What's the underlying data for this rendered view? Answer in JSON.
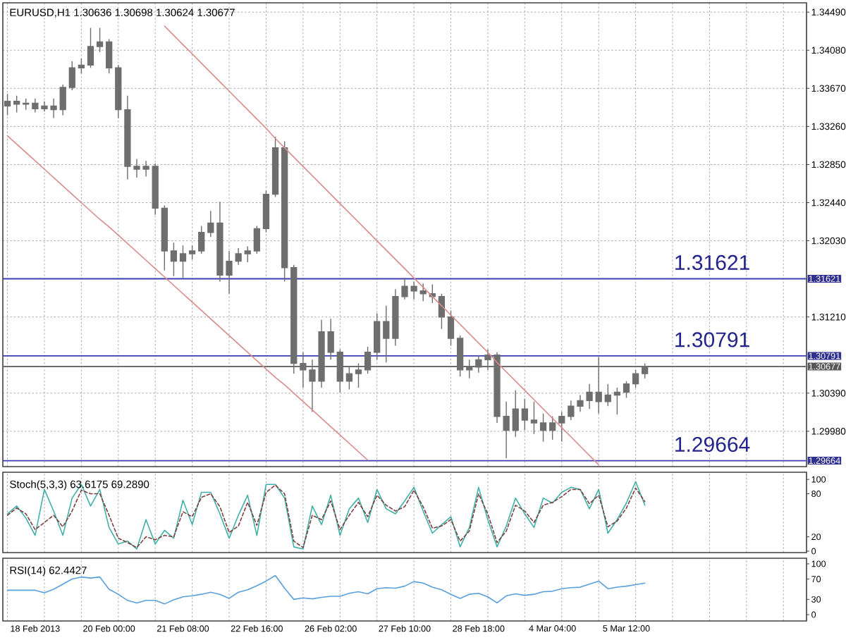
{
  "chart_data": [
    {
      "type": "candlestick",
      "title": "EURUSD,H1 1.30636 1.30698 1.30624 1.30677",
      "color": "#6e6e6e",
      "categories": [
        null,
        null,
        null,
        null,
        null,
        null,
        null,
        null,
        null,
        null,
        null,
        null,
        null,
        null,
        null,
        null,
        null,
        null,
        null,
        null,
        null,
        null,
        null,
        null,
        null,
        null,
        null,
        null,
        null,
        null,
        null,
        null,
        null,
        null,
        null,
        null,
        null,
        null,
        null,
        null,
        null,
        null,
        null,
        null,
        null,
        null,
        null,
        null,
        null,
        null,
        null,
        null,
        null,
        null,
        null,
        null,
        null,
        null,
        null,
        null,
        null,
        null,
        null,
        null,
        null,
        null,
        null,
        null,
        null,
        null,
        null,
        null,
        null,
        null,
        null,
        null,
        null,
        null,
        null,
        null,
        null,
        null,
        null,
        null,
        null,
        null,
        null
      ],
      "ohlc": [
        [
          1.3348,
          1.3361,
          1.3338,
          1.3353
        ],
        [
          1.3353,
          1.3359,
          1.3341,
          1.335
        ],
        [
          1.335,
          1.3356,
          1.3344,
          1.3351
        ],
        [
          1.3351,
          1.3356,
          1.3341,
          1.3345
        ],
        [
          1.3345,
          1.3353,
          1.3342,
          1.3348
        ],
        [
          1.3348,
          1.3356,
          1.3335,
          1.3344
        ],
        [
          1.3344,
          1.3371,
          1.3338,
          1.3368
        ],
        [
          1.3368,
          1.3396,
          1.3365,
          1.3389
        ],
        [
          1.3389,
          1.3399,
          1.3383,
          1.3392
        ],
        [
          1.3392,
          1.3432,
          1.3389,
          1.3412
        ],
        [
          1.3412,
          1.3432,
          1.3406,
          1.3417
        ],
        [
          1.3417,
          1.342,
          1.3383,
          1.3389
        ],
        [
          1.3389,
          1.3392,
          1.3335,
          1.3344
        ],
        [
          1.3344,
          1.3359,
          1.3269,
          1.3283
        ],
        [
          1.3283,
          1.3291,
          1.3271,
          1.328
        ],
        [
          1.328,
          1.3289,
          1.3272,
          1.3283
        ],
        [
          1.3283,
          1.3286,
          1.3231,
          1.3238
        ],
        [
          1.3238,
          1.3241,
          1.3171,
          1.3192
        ],
        [
          1.3192,
          1.3201,
          1.3165,
          1.3181
        ],
        [
          1.3181,
          1.3198,
          1.3163,
          1.3189
        ],
        [
          1.3189,
          1.3198,
          1.3183,
          1.3192
        ],
        [
          1.3192,
          1.3219,
          1.3189,
          1.3212
        ],
        [
          1.3212,
          1.3235,
          1.3207,
          1.3222
        ],
        [
          1.3222,
          1.3245,
          1.3159,
          1.3166
        ],
        [
          1.3166,
          1.3192,
          1.3146,
          1.3181
        ],
        [
          1.3181,
          1.3195,
          1.3177,
          1.3189
        ],
        [
          1.3189,
          1.3197,
          1.318,
          1.3192
        ],
        [
          1.3192,
          1.3219,
          1.3189,
          1.3216
        ],
        [
          1.3216,
          1.3257,
          1.3212,
          1.3253
        ],
        [
          1.3253,
          1.3315,
          1.325,
          1.3303
        ],
        [
          1.3303,
          1.331,
          1.3159,
          1.3174
        ],
        [
          1.3174,
          1.3177,
          1.306,
          1.3071
        ],
        [
          1.3071,
          1.3083,
          1.3045,
          1.3064
        ],
        [
          1.3064,
          1.3075,
          1.3019,
          1.3052
        ],
        [
          1.3052,
          1.3118,
          1.3045,
          1.3105
        ],
        [
          1.3105,
          1.3119,
          1.3075,
          1.3083
        ],
        [
          1.3083,
          1.3086,
          1.304,
          1.3052
        ],
        [
          1.3052,
          1.3067,
          1.3043,
          1.306
        ],
        [
          1.306,
          1.3071,
          1.3045,
          1.3064
        ],
        [
          1.3064,
          1.3089,
          1.306,
          1.3083
        ],
        [
          1.3083,
          1.3125,
          1.3075,
          1.3116
        ],
        [
          1.3116,
          1.3133,
          1.3072,
          1.3098
        ],
        [
          1.3098,
          1.3151,
          1.309,
          1.3143
        ],
        [
          1.3143,
          1.3163,
          1.314,
          1.3154
        ],
        [
          1.3154,
          1.3159,
          1.314,
          1.3149
        ],
        [
          1.3149,
          1.3157,
          1.3138,
          1.3146
        ],
        [
          1.3146,
          1.3156,
          1.3136,
          1.3143
        ],
        [
          1.3143,
          1.3146,
          1.3108,
          1.3121
        ],
        [
          1.3121,
          1.3128,
          1.309,
          1.3098
        ],
        [
          1.3098,
          1.3101,
          1.3057,
          1.3064
        ],
        [
          1.3064,
          1.3075,
          1.3055,
          1.3067
        ],
        [
          1.3067,
          1.308,
          1.3061,
          1.3075
        ],
        [
          1.3075,
          1.3086,
          1.3064,
          1.308
        ],
        [
          1.308,
          1.3083,
          1.3007,
          1.3014
        ],
        [
          1.3014,
          1.303,
          1.2969,
          1.2999
        ],
        [
          1.2999,
          1.3042,
          1.2992,
          1.3022
        ],
        [
          1.3022,
          1.3033,
          1.2999,
          1.301
        ],
        [
          1.301,
          1.303,
          1.2995,
          1.3007
        ],
        [
          1.3007,
          1.3017,
          1.2987,
          1.2999
        ],
        [
          1.2999,
          1.3014,
          1.2989,
          1.3007
        ],
        [
          1.3007,
          1.3019,
          1.2987,
          1.3014
        ],
        [
          1.3014,
          1.3031,
          1.301,
          1.3025
        ],
        [
          1.3025,
          1.3037,
          1.3019,
          1.3031
        ],
        [
          1.3031,
          1.3049,
          1.3022,
          1.304
        ],
        [
          1.304,
          1.3078,
          1.3017,
          1.303
        ],
        [
          1.303,
          1.3049,
          1.3025,
          1.3037
        ],
        [
          1.3037,
          1.3045,
          1.3016,
          1.304
        ],
        [
          1.304,
          1.3052,
          1.3034,
          1.3049
        ],
        [
          1.3049,
          1.3064,
          1.3045,
          1.306
        ],
        [
          1.306,
          1.3071,
          1.3055,
          1.3068
        ],
        null,
        null,
        null,
        null,
        null,
        null,
        null,
        null,
        null,
        null,
        null,
        null,
        null,
        null,
        null,
        null,
        null
      ],
      "series": [
        {
          "type": "line",
          "color": "#d98c8c",
          "values": [
            null,
            null,
            null,
            null,
            null,
            null,
            null,
            null,
            null,
            null,
            null,
            null,
            null,
            null,
            null,
            null,
            null,
            1.3434,
            1.3424,
            1.3414,
            1.3404,
            1.3394,
            1.3384,
            1.3374,
            1.3364,
            1.3354,
            1.3344,
            1.3334,
            1.3324,
            1.3313,
            1.3303,
            1.3293,
            1.3283,
            1.3273,
            1.3263,
            1.3253,
            1.3243,
            1.3233,
            1.3223,
            1.3213,
            1.3203,
            1.3193,
            1.3183,
            1.3173,
            1.3163,
            1.3153,
            1.3143,
            1.3133,
            1.3123,
            1.3113,
            1.3103,
            1.3093,
            1.3083,
            1.3072,
            1.3062,
            1.3052,
            1.3042,
            1.3032,
            1.3022,
            1.3012,
            1.3002,
            1.2992,
            1.2982,
            1.2972,
            1.2962,
            null,
            null,
            null,
            null,
            null,
            null,
            null,
            null,
            null,
            null,
            null,
            null,
            null,
            null,
            null,
            null,
            null,
            null,
            null,
            null,
            null,
            null
          ]
        },
        {
          "type": "line",
          "color": "#d98c8c",
          "values": [
            1.3316,
            1.3307,
            1.3298,
            1.3289,
            1.328,
            1.3271,
            1.3262,
            1.3253,
            1.3244,
            1.3235,
            1.3226,
            1.3218,
            1.3209,
            1.32,
            1.3191,
            1.3182,
            1.3173,
            1.3164,
            1.3155,
            1.3146,
            1.3137,
            1.3128,
            1.3119,
            1.311,
            1.3101,
            1.3092,
            1.3083,
            1.3074,
            1.3065,
            1.3056,
            1.3048,
            1.3039,
            1.303,
            1.3021,
            1.3012,
            1.3003,
            1.2994,
            1.2985,
            1.2976,
            1.2967,
            null,
            null,
            null,
            null,
            null,
            null,
            null,
            null,
            null,
            null,
            null,
            null,
            null,
            null,
            null,
            null,
            null,
            null,
            null,
            null,
            null,
            null,
            null,
            null,
            null,
            null,
            null,
            null,
            null,
            null,
            null,
            null,
            null,
            null,
            null,
            null,
            null,
            null,
            null,
            null,
            null,
            null,
            null,
            null,
            null,
            null,
            null
          ]
        }
      ],
      "ref_lines": [
        {
          "axis": "y",
          "value": 1.31621,
          "label": "1.31621",
          "color": "#3c3cb4"
        },
        {
          "axis": "y",
          "value": 1.30791,
          "label": "1.30791",
          "color": "#3c3cb4"
        },
        {
          "axis": "y",
          "value": 1.30677,
          "label": "1.30677",
          "color": "#6e6e6e"
        },
        {
          "axis": "y",
          "value": 1.29664,
          "label": "1.29664",
          "color": "#3c3cb4"
        }
      ],
      "annotations": [
        {
          "text": "1.31621",
          "y": 1.31621
        },
        {
          "text": "1.30791",
          "y": 1.30791
        },
        {
          "text": "1.29664",
          "y": 1.29664
        }
      ],
      "ylim": [
        1.296,
        1.3459
      ],
      "yticks": [
        {
          "value": 1.3449,
          "label": "1.34490"
        },
        {
          "value": 1.3408,
          "label": "1.34080"
        },
        {
          "value": 1.3367,
          "label": "1.33670"
        },
        {
          "value": 1.3326,
          "label": "1.33260"
        },
        {
          "value": 1.3285,
          "label": "1.32850"
        },
        {
          "value": 1.3244,
          "label": "1.32440"
        },
        {
          "value": 1.3203,
          "label": "1.32030"
        },
        {
          "value": 1.3121,
          "label": "1.31210"
        },
        {
          "value": 1.3039,
          "label": "1.30390"
        },
        {
          "value": 1.2998,
          "label": "1.29980"
        }
      ],
      "grid": true,
      "tick_labels": "y"
    },
    {
      "type": "line",
      "title": "Stoch(5,3,3) 63.6175 69.2890",
      "categories": [
        null,
        null,
        null,
        null,
        null,
        null,
        null,
        null,
        null,
        null,
        null,
        null,
        null,
        null,
        null,
        null,
        null,
        null,
        null,
        null,
        null,
        null,
        null,
        null,
        null,
        null,
        null,
        null,
        null,
        null,
        null,
        null,
        null,
        null,
        null,
        null,
        null,
        null,
        null,
        null,
        null,
        null,
        null,
        null,
        null,
        null,
        null,
        null,
        null,
        null,
        null,
        null,
        null,
        null,
        null,
        null,
        null,
        null,
        null,
        null,
        null,
        null,
        null,
        null,
        null,
        null,
        null,
        null,
        null,
        null,
        null,
        null,
        null,
        null,
        null,
        null,
        null,
        null,
        null,
        null,
        null,
        null,
        null,
        null,
        null,
        null,
        null
      ],
      "series": [
        {
          "color": "#40b0a8",
          "values": [
            52,
            63,
            46,
            22,
            86,
            56,
            22,
            74,
            93,
            63,
            86,
            33,
            10,
            14,
            3,
            44,
            10,
            29,
            18,
            71,
            37,
            82,
            82,
            52,
            18,
            50,
            78,
            22,
            93,
            93,
            74,
            6,
            3,
            63,
            37,
            78,
            22,
            59,
            74,
            40,
            86,
            59,
            52,
            70,
            89,
            56,
            25,
            37,
            48,
            6,
            33,
            89,
            44,
            6,
            35,
            74,
            52,
            33,
            74,
            67,
            82,
            89,
            86,
            59,
            86,
            25,
            44,
            67,
            97,
            64,
            null,
            null,
            null,
            null,
            null,
            null,
            null,
            null,
            null,
            null,
            null,
            null,
            null,
            null,
            null,
            null,
            null
          ]
        },
        {
          "color": "#7d4040",
          "line_style": "dashed",
          "values": [
            50,
            60,
            52,
            30,
            40,
            50,
            34,
            56,
            85,
            80,
            80,
            50,
            18,
            12,
            5,
            20,
            16,
            22,
            20,
            55,
            48,
            75,
            80,
            62,
            26,
            35,
            68,
            36,
            82,
            92,
            80,
            14,
            5,
            50,
            44,
            70,
            30,
            50,
            68,
            48,
            78,
            64,
            56,
            62,
            85,
            62,
            32,
            35,
            44,
            14,
            28,
            80,
            52,
            12,
            28,
            64,
            56,
            40,
            64,
            68,
            76,
            86,
            86,
            66,
            78,
            34,
            42,
            60,
            88,
            69,
            null,
            null,
            null,
            null,
            null,
            null,
            null,
            null,
            null,
            null,
            null,
            null,
            null,
            null,
            null,
            null,
            null
          ]
        }
      ],
      "ylim": [
        -2,
        110
      ],
      "yticks": [
        0,
        20,
        80,
        100
      ],
      "grid": "x",
      "tick_labels": "y"
    },
    {
      "type": "line",
      "title": "RSI(14) 62.4427",
      "categories": [
        null,
        null,
        null,
        "18 Feb 2013",
        null,
        null,
        null,
        null,
        null,
        null,
        null,
        "20 Feb 00:00",
        null,
        null,
        null,
        null,
        null,
        null,
        null,
        "21 Feb 08:00",
        null,
        null,
        null,
        null,
        null,
        null,
        null,
        "22 Feb 16:00",
        null,
        null,
        null,
        null,
        null,
        null,
        null,
        "26 Feb 02:00",
        null,
        null,
        null,
        null,
        null,
        null,
        null,
        "27 Feb 10:00",
        null,
        null,
        null,
        null,
        null,
        null,
        null,
        "28 Feb 18:00",
        null,
        null,
        null,
        null,
        null,
        null,
        null,
        "4 Mar 04:00",
        null,
        null,
        null,
        null,
        null,
        null,
        null,
        "5 Mar 12:00",
        null,
        null,
        null,
        null,
        null,
        null,
        null,
        null,
        null,
        null,
        null,
        null,
        null,
        null,
        null,
        null,
        null,
        null,
        null
      ],
      "values": [
        48,
        48,
        48,
        48,
        43,
        50,
        60,
        70,
        74,
        72,
        74,
        50,
        40,
        28,
        23,
        28,
        28,
        21,
        29,
        35,
        37,
        40,
        44,
        40,
        32,
        44,
        49,
        57,
        66,
        77,
        52,
        30,
        33,
        31,
        34,
        36,
        36,
        42,
        45,
        41,
        51,
        53,
        52,
        56,
        65,
        62,
        54,
        49,
        40,
        32,
        40,
        42,
        35,
        23,
        37,
        41,
        38,
        40,
        45,
        46,
        51,
        53,
        54,
        60,
        66,
        51,
        54,
        56,
        59,
        62,
        null,
        null,
        null,
        null,
        null,
        null,
        null,
        null,
        null,
        null,
        null,
        null,
        null,
        null,
        null,
        null,
        null
      ],
      "color": "#5aa0dc",
      "ylim": [
        -12.5,
        111
      ],
      "yticks": [
        0,
        30,
        70,
        100
      ],
      "grid": "x"
    }
  ]
}
